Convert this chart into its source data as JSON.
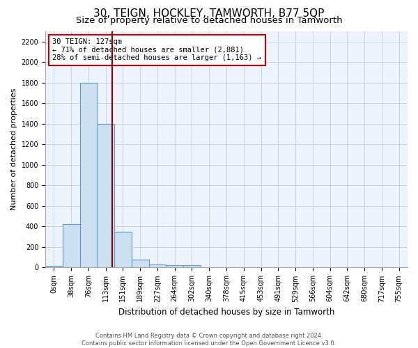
{
  "title": "30, TEIGN, HOCKLEY, TAMWORTH, B77 5QP",
  "subtitle": "Size of property relative to detached houses in Tamworth",
  "xlabel": "Distribution of detached houses by size in Tamworth",
  "ylabel": "Number of detached properties",
  "footer_line1": "Contains HM Land Registry data © Crown copyright and database right 2024.",
  "footer_line2": "Contains public sector information licensed under the Open Government Licence v3.0.",
  "bin_labels": [
    "0sqm",
    "38sqm",
    "76sqm",
    "113sqm",
    "151sqm",
    "189sqm",
    "227sqm",
    "264sqm",
    "302sqm",
    "340sqm",
    "378sqm",
    "415sqm",
    "453sqm",
    "491sqm",
    "529sqm",
    "566sqm",
    "604sqm",
    "642sqm",
    "680sqm",
    "717sqm",
    "755sqm"
  ],
  "bar_values": [
    15,
    420,
    1800,
    1400,
    350,
    80,
    30,
    20,
    20,
    0,
    0,
    0,
    0,
    0,
    0,
    0,
    0,
    0,
    0,
    0,
    0
  ],
  "bar_color": "#cce0f0",
  "bar_edge_color": "#5b9bd5",
  "property_line_color": "#8b0000",
  "annotation_text": "30 TEIGN: 127sqm\n← 71% of detached houses are smaller (2,881)\n28% of semi-detached houses are larger (1,163) →",
  "annotation_box_color": "#cc0000",
  "ylim": [
    0,
    2300
  ],
  "yticks": [
    0,
    200,
    400,
    600,
    800,
    1000,
    1200,
    1400,
    1600,
    1800,
    2000,
    2200
  ],
  "grid_color": "#b8cfe8",
  "background_color": "#eef2fa",
  "title_fontsize": 11,
  "subtitle_fontsize": 9.5,
  "tick_fontsize": 7,
  "ylabel_fontsize": 8,
  "xlabel_fontsize": 8.5,
  "footer_fontsize": 6,
  "annotation_fontsize": 7.5
}
